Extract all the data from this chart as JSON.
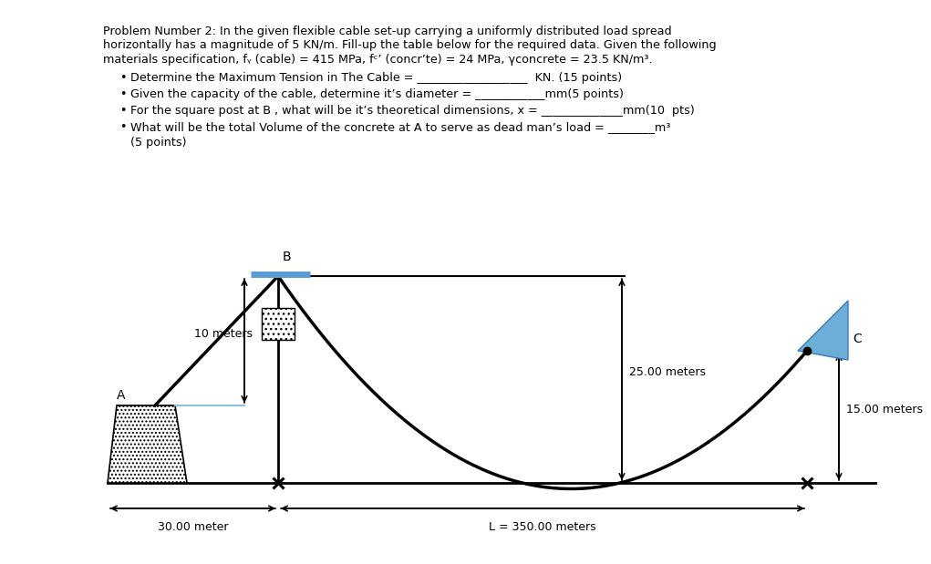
{
  "line1": "Problem Number 2: In the given flexible cable set-up carrying a uniformly distributed load spread",
  "line2": "horizontally has a magnitude of 5 KN/m. Fill-up the table below for the required data. Given the following",
  "line3": "materials specification, fᵧ (cable) = 415 MPa, fᶜ’ (concr’te) = 24 MPa, γconcrete = 23.5 KN/m³.",
  "bullet1": "Determine the Maximum Tension in The Cable = ___________________  KN. (15 points)",
  "bullet2": "Given the capacity of the cable, determine it’s diameter = ____________mm(5 points)",
  "bullet3": "For the square post at B , what will be it’s theoretical dimensions, x = ______________mm(10  pts)",
  "bullet4": "What will be the total Volume of the concrete at A to serve as dead man’s load = ________m³",
  "bullet4b": "(5 points)",
  "label_B": "B",
  "label_A": "A",
  "label_C": "C",
  "label_10m": "10 meters",
  "label_25m": "25.00 meters",
  "label_15m": "15.00 meters",
  "label_30m": "30.00 meter",
  "label_L": "L = 350.00 meters",
  "bg_color": "#ffffff"
}
